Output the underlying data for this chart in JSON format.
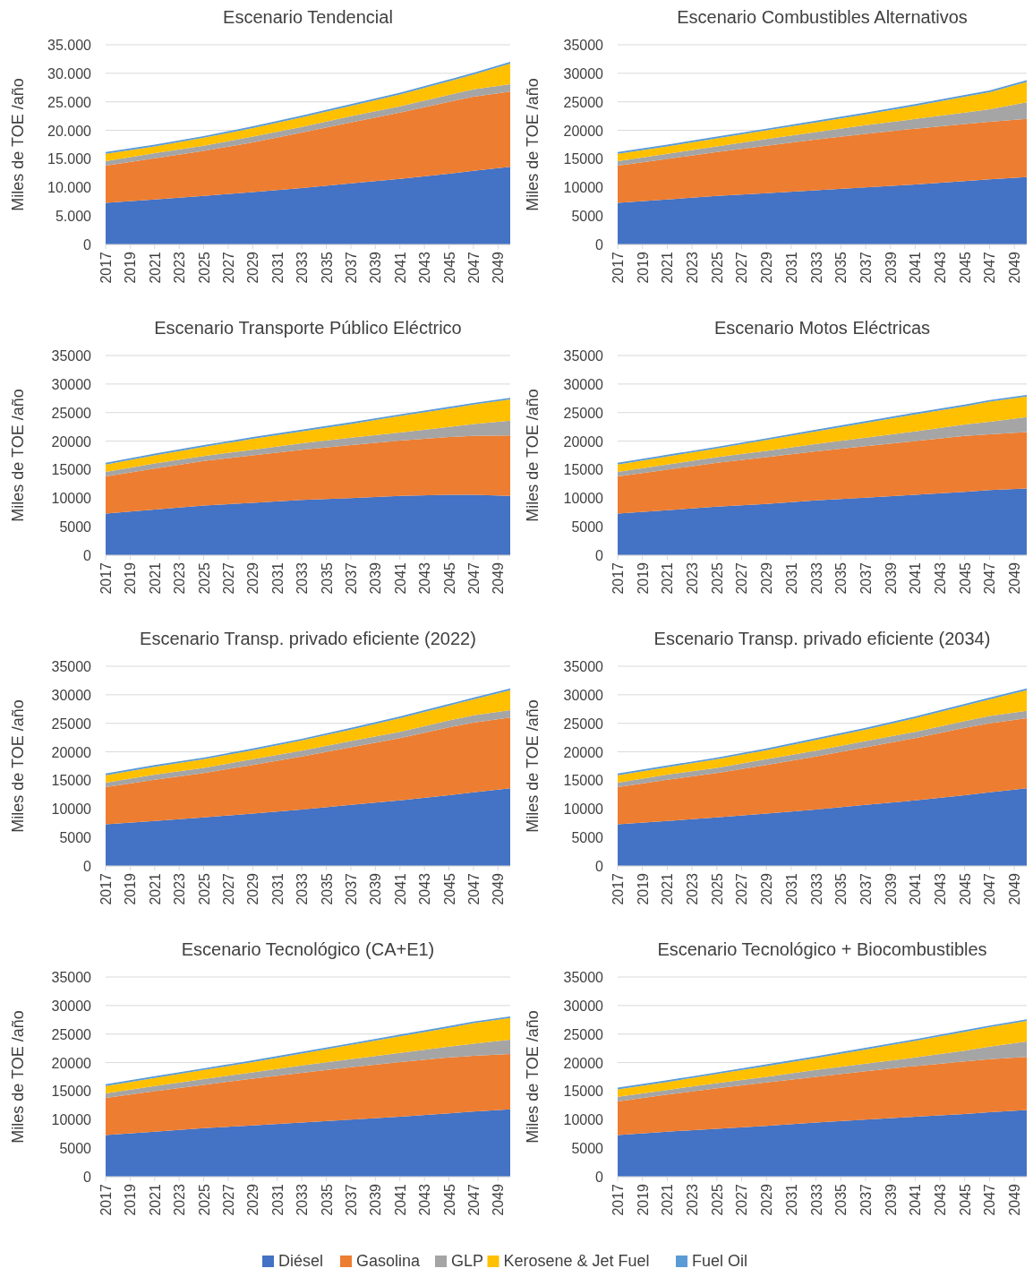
{
  "chart_data": [
    {
      "type": "area",
      "stacked": true,
      "title": "Escenario Tendencial",
      "ylabel": "Miles de TOE /año",
      "grid": "y",
      "legend": "bottom",
      "x": [
        2017,
        2021,
        2025,
        2029,
        2033,
        2037,
        2041,
        2045,
        2047,
        2050
      ],
      "xlim": [
        2017,
        2050
      ],
      "xticks": [
        2017,
        2019,
        2021,
        2023,
        2025,
        2027,
        2029,
        2031,
        2033,
        2035,
        2037,
        2039,
        2041,
        2043,
        2045,
        2047,
        2049
      ],
      "ylim": [
        0,
        35000
      ],
      "yticks": [
        0,
        {
          "value": 5000,
          "label": "5.000"
        },
        {
          "value": 10000,
          "label": "10.000"
        },
        {
          "value": 15000,
          "label": "15.000"
        },
        {
          "value": 20000,
          "label": "20.000"
        },
        {
          "value": 25000,
          "label": "25.000"
        },
        {
          "value": 30000,
          "label": "30.000"
        },
        {
          "value": 35000,
          "label": "35.000"
        }
      ],
      "series": [
        {
          "name": "Diésel",
          "color": "#4472c4",
          "values": [
            7300,
            7900,
            8500,
            9200,
            9900,
            10700,
            11500,
            12400,
            12900,
            13600
          ]
        },
        {
          "name": "Gasolina",
          "color": "#ed7d31",
          "values": [
            6500,
            7200,
            7900,
            8700,
            9700,
            10700,
            11600,
            12600,
            13000,
            13200
          ]
        },
        {
          "name": "GLP",
          "color": "#a5a5a5",
          "values": [
            800,
            900,
            900,
            1000,
            1000,
            1100,
            1100,
            1200,
            1300,
            1300
          ]
        },
        {
          "name": "Kerosene & Jet Fuel",
          "color": "#ffc000",
          "values": [
            1300,
            1200,
            1400,
            1500,
            1700,
            1800,
            2100,
            2400,
            2600,
            3600
          ]
        },
        {
          "name": "Fuel Oil",
          "color": "#5b9bd5",
          "values": [
            300,
            300,
            300,
            300,
            300,
            300,
            300,
            300,
            300,
            300
          ]
        }
      ]
    },
    {
      "type": "area",
      "stacked": true,
      "title": "Escenario Combustibles Alternativos",
      "ylabel": "Miles de TOE /año",
      "grid": "y",
      "x": [
        2017,
        2021,
        2025,
        2029,
        2033,
        2037,
        2041,
        2045,
        2047,
        2050
      ],
      "xlim": [
        2017,
        2050
      ],
      "xticks": [
        2017,
        2019,
        2021,
        2023,
        2025,
        2027,
        2029,
        2031,
        2033,
        2035,
        2037,
        2039,
        2041,
        2043,
        2045,
        2047,
        2049
      ],
      "ylim": [
        0,
        35000
      ],
      "yticks": [
        0,
        5000,
        10000,
        15000,
        20000,
        25000,
        30000,
        35000
      ],
      "series": [
        {
          "color": "#4472c4",
          "values": [
            7300,
            7900,
            8500,
            9000,
            9500,
            10000,
            10500,
            11100,
            11400,
            11800
          ]
        },
        {
          "color": "#ed7d31",
          "values": [
            6500,
            7100,
            7700,
            8300,
            8900,
            9400,
            9800,
            10000,
            10100,
            10200
          ]
        },
        {
          "color": "#a5a5a5",
          "values": [
            800,
            900,
            1000,
            1200,
            1300,
            1500,
            1700,
            2000,
            2200,
            2900
          ]
        },
        {
          "color": "#ffc000",
          "values": [
            1300,
            1300,
            1400,
            1500,
            1700,
            1900,
            2300,
            2800,
            3000,
            3600
          ]
        },
        {
          "color": "#5b9bd5",
          "values": [
            300,
            300,
            300,
            300,
            300,
            300,
            300,
            300,
            300,
            300
          ]
        }
      ]
    },
    {
      "type": "area",
      "stacked": true,
      "title": "Escenario Transporte Público Eléctrico",
      "ylabel": "Miles de TOE /año",
      "grid": "y",
      "x": [
        2017,
        2021,
        2025,
        2029,
        2033,
        2037,
        2041,
        2045,
        2047,
        2050
      ],
      "xlim": [
        2017,
        2050
      ],
      "xticks": [
        2017,
        2019,
        2021,
        2023,
        2025,
        2027,
        2029,
        2031,
        2033,
        2035,
        2037,
        2039,
        2041,
        2043,
        2045,
        2047,
        2049
      ],
      "ylim": [
        0,
        35000
      ],
      "yticks": [
        0,
        5000,
        10000,
        15000,
        20000,
        25000,
        30000,
        35000
      ],
      "series": [
        {
          "color": "#4472c4",
          "values": [
            7300,
            8000,
            8700,
            9200,
            9700,
            10000,
            10400,
            10600,
            10600,
            10400
          ]
        },
        {
          "color": "#ed7d31",
          "values": [
            6500,
            7200,
            7800,
            8300,
            8800,
            9300,
            9700,
            10100,
            10300,
            10600
          ]
        },
        {
          "color": "#a5a5a5",
          "values": [
            800,
            900,
            900,
            1000,
            1100,
            1300,
            1400,
            1800,
            2100,
            2600
          ]
        },
        {
          "color": "#ffc000",
          "values": [
            1300,
            1400,
            1600,
            1900,
            2100,
            2400,
            2900,
            3200,
            3400,
            3700
          ]
        },
        {
          "color": "#5b9bd5",
          "values": [
            300,
            300,
            300,
            300,
            300,
            300,
            300,
            300,
            300,
            300
          ]
        }
      ]
    },
    {
      "type": "area",
      "stacked": true,
      "title": "Escenario Motos Eléctricas",
      "ylabel": "Miles de TOE /año",
      "grid": "y",
      "x": [
        2017,
        2021,
        2025,
        2029,
        2033,
        2037,
        2041,
        2045,
        2047,
        2050
      ],
      "xlim": [
        2017,
        2050
      ],
      "xticks": [
        2017,
        2019,
        2021,
        2023,
        2025,
        2027,
        2029,
        2031,
        2033,
        2035,
        2037,
        2039,
        2041,
        2043,
        2045,
        2047,
        2049
      ],
      "ylim": [
        0,
        35000
      ],
      "yticks": [
        0,
        5000,
        10000,
        15000,
        20000,
        25000,
        30000,
        35000
      ],
      "series": [
        {
          "color": "#4472c4",
          "values": [
            7300,
            7900,
            8500,
            9000,
            9600,
            10100,
            10600,
            11100,
            11400,
            11700
          ]
        },
        {
          "color": "#ed7d31",
          "values": [
            6500,
            7100,
            7700,
            8200,
            8600,
            9000,
            9400,
            9800,
            9800,
            9900
          ]
        },
        {
          "color": "#a5a5a5",
          "values": [
            800,
            900,
            1000,
            1100,
            1300,
            1500,
            1700,
            2000,
            2200,
            2600
          ]
        },
        {
          "color": "#ffc000",
          "values": [
            1300,
            1400,
            1500,
            1900,
            2200,
            2600,
            3000,
            3200,
            3500,
            3600
          ]
        },
        {
          "color": "#5b9bd5",
          "values": [
            300,
            300,
            300,
            300,
            300,
            300,
            300,
            300,
            300,
            300
          ]
        }
      ]
    },
    {
      "type": "area",
      "stacked": true,
      "title": "Escenario Transp. privado eficiente (2022)",
      "ylabel": "Miles de TOE /año",
      "grid": "y",
      "x": [
        2017,
        2021,
        2025,
        2029,
        2033,
        2037,
        2041,
        2045,
        2047,
        2050
      ],
      "xlim": [
        2017,
        2050
      ],
      "xticks": [
        2017,
        2019,
        2021,
        2023,
        2025,
        2027,
        2029,
        2031,
        2033,
        2035,
        2037,
        2039,
        2041,
        2043,
        2045,
        2047,
        2049
      ],
      "ylim": [
        0,
        35000
      ],
      "yticks": [
        0,
        5000,
        10000,
        15000,
        20000,
        25000,
        30000,
        35000
      ],
      "series": [
        {
          "color": "#4472c4",
          "values": [
            7300,
            7900,
            8500,
            9200,
            9900,
            10700,
            11500,
            12400,
            12900,
            13600
          ]
        },
        {
          "color": "#ed7d31",
          "values": [
            6500,
            7200,
            7800,
            8500,
            9300,
            10100,
            10900,
            11900,
            12200,
            12400
          ]
        },
        {
          "color": "#a5a5a5",
          "values": [
            800,
            900,
            900,
            1000,
            1000,
            1100,
            1100,
            1200,
            1300,
            1300
          ]
        },
        {
          "color": "#ffc000",
          "values": [
            1300,
            1400,
            1500,
            1600,
            1800,
            2000,
            2400,
            2600,
            2800,
            3500
          ]
        },
        {
          "color": "#5b9bd5",
          "values": [
            300,
            300,
            300,
            300,
            300,
            300,
            300,
            300,
            300,
            300
          ]
        }
      ]
    },
    {
      "type": "area",
      "stacked": true,
      "title": "Escenario Transp. privado eficiente (2034)",
      "ylabel": "Miles de TOE /año",
      "grid": "y",
      "x": [
        2017,
        2021,
        2025,
        2029,
        2033,
        2037,
        2041,
        2045,
        2047,
        2050
      ],
      "xlim": [
        2017,
        2050
      ],
      "xticks": [
        2017,
        2019,
        2021,
        2023,
        2025,
        2027,
        2029,
        2031,
        2033,
        2035,
        2037,
        2039,
        2041,
        2043,
        2045,
        2047,
        2049
      ],
      "ylim": [
        0,
        35000
      ],
      "yticks": [
        0,
        5000,
        10000,
        15000,
        20000,
        25000,
        30000,
        35000
      ],
      "series": [
        {
          "color": "#4472c4",
          "values": [
            7300,
            7900,
            8500,
            9200,
            9900,
            10700,
            11500,
            12400,
            12900,
            13600
          ]
        },
        {
          "color": "#ed7d31",
          "values": [
            6500,
            7200,
            7800,
            8500,
            9300,
            10100,
            10900,
            11800,
            12100,
            12300
          ]
        },
        {
          "color": "#a5a5a5",
          "values": [
            800,
            900,
            900,
            1000,
            1000,
            1100,
            1100,
            1200,
            1300,
            1300
          ]
        },
        {
          "color": "#ffc000",
          "values": [
            1300,
            1300,
            1500,
            1600,
            1900,
            2000,
            2400,
            2700,
            2900,
            3600
          ]
        },
        {
          "color": "#5b9bd5",
          "values": [
            300,
            300,
            300,
            300,
            300,
            300,
            300,
            300,
            300,
            300
          ]
        }
      ]
    },
    {
      "type": "area",
      "stacked": true,
      "title": "Escenario Tecnológico (CA+E1)",
      "ylabel": "Miles de TOE /año",
      "grid": "y",
      "x": [
        2017,
        2021,
        2025,
        2029,
        2033,
        2037,
        2041,
        2045,
        2047,
        2050
      ],
      "xlim": [
        2017,
        2050
      ],
      "xticks": [
        2017,
        2019,
        2021,
        2023,
        2025,
        2027,
        2029,
        2031,
        2033,
        2035,
        2037,
        2039,
        2041,
        2043,
        2045,
        2047,
        2049
      ],
      "ylim": [
        0,
        35000
      ],
      "yticks": [
        0,
        5000,
        10000,
        15000,
        20000,
        25000,
        30000,
        35000
      ],
      "series": [
        {
          "color": "#4472c4",
          "values": [
            7300,
            7900,
            8500,
            9000,
            9500,
            10000,
            10500,
            11100,
            11400,
            11800
          ]
        },
        {
          "color": "#ed7d31",
          "values": [
            6500,
            7100,
            7600,
            8200,
            8700,
            9200,
            9600,
            9800,
            9800,
            9700
          ]
        },
        {
          "color": "#a5a5a5",
          "values": [
            800,
            900,
            1000,
            1100,
            1300,
            1400,
            1600,
            1900,
            2100,
            2500
          ]
        },
        {
          "color": "#ffc000",
          "values": [
            1300,
            1400,
            1600,
            1800,
            2100,
            2500,
            2900,
            3300,
            3600,
            3800
          ]
        },
        {
          "color": "#5b9bd5",
          "values": [
            300,
            300,
            300,
            300,
            300,
            300,
            300,
            300,
            300,
            300
          ]
        }
      ]
    },
    {
      "type": "area",
      "stacked": true,
      "title": "Escenario Tecnológico + Biocombustibles",
      "ylabel": "Miles de TOE /año",
      "grid": "y",
      "x": [
        2017,
        2021,
        2025,
        2029,
        2033,
        2037,
        2041,
        2045,
        2047,
        2050
      ],
      "xlim": [
        2017,
        2050
      ],
      "xticks": [
        2017,
        2019,
        2021,
        2023,
        2025,
        2027,
        2029,
        2031,
        2033,
        2035,
        2037,
        2039,
        2041,
        2043,
        2045,
        2047,
        2049
      ],
      "ylim": [
        0,
        35000
      ],
      "yticks": [
        0,
        5000,
        10000,
        15000,
        20000,
        25000,
        30000,
        35000
      ],
      "series": [
        {
          "color": "#4472c4",
          "values": [
            7300,
            7900,
            8400,
            8900,
            9500,
            10000,
            10500,
            11000,
            11300,
            11700
          ]
        },
        {
          "color": "#ed7d31",
          "values": [
            5900,
            6500,
            7100,
            7600,
            8000,
            8500,
            8900,
            9200,
            9300,
            9300
          ]
        },
        {
          "color": "#a5a5a5",
          "values": [
            800,
            800,
            900,
            1000,
            1200,
            1300,
            1500,
            1900,
            2200,
            2700
          ]
        },
        {
          "color": "#ffc000",
          "values": [
            1300,
            1400,
            1600,
            1900,
            2100,
            2500,
            2900,
            3300,
            3400,
            3600
          ]
        },
        {
          "color": "#5b9bd5",
          "values": [
            300,
            300,
            300,
            300,
            300,
            300,
            300,
            300,
            300,
            300
          ]
        }
      ]
    }
  ]
}
